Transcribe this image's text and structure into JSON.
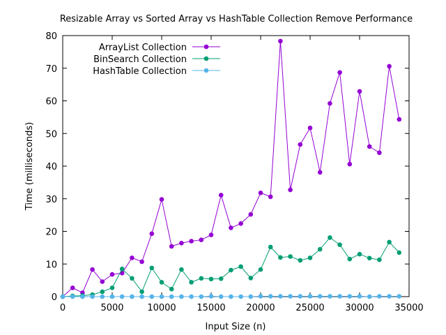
{
  "chart_data": {
    "type": "line",
    "title": "Resizable Array vs Sorted Array vs HashTable Collection Remove Performance",
    "xlabel": "Input Size (n)",
    "ylabel": "Time (milliseconds)",
    "xlim": [
      0,
      35000
    ],
    "ylim": [
      0,
      80
    ],
    "xticks": [
      0,
      5000,
      10000,
      15000,
      20000,
      25000,
      30000,
      35000
    ],
    "yticks": [
      0,
      10,
      20,
      30,
      40,
      50,
      60,
      70,
      80
    ],
    "grid": false,
    "legend_position": "top-left",
    "x": [
      0,
      1000,
      2000,
      3000,
      4000,
      5000,
      6000,
      7000,
      8000,
      9000,
      10000,
      11000,
      12000,
      13000,
      14000,
      15000,
      16000,
      17000,
      18000,
      19000,
      20000,
      21000,
      22000,
      23000,
      24000,
      25000,
      26000,
      27000,
      28000,
      29000,
      30000,
      31000,
      32000,
      33000,
      34000
    ],
    "series": [
      {
        "name": "ArrayList Collection",
        "color": "#9400d3",
        "values": [
          0,
          2.7,
          1.2,
          8.3,
          4.6,
          6.8,
          7.2,
          11.9,
          10.7,
          19.3,
          29.8,
          15.4,
          16.4,
          17.0,
          17.4,
          18.9,
          31.1,
          21.1,
          22.4,
          25.2,
          31.8,
          30.6,
          78.3,
          32.7,
          46.6,
          51.7,
          38.1,
          59.2,
          68.7,
          40.6,
          62.9,
          46.0,
          44.1,
          70.6,
          54.3
        ]
      },
      {
        "name": "BinSearch Collection",
        "color": "#009e73",
        "values": [
          0,
          0.2,
          0.3,
          0.6,
          1.5,
          2.7,
          8.5,
          5.6,
          1.5,
          8.8,
          4.4,
          2.3,
          8.3,
          4.4,
          5.6,
          5.4,
          5.5,
          8.1,
          9.2,
          5.7,
          8.3,
          15.2,
          12.0,
          12.3,
          11.1,
          11.9,
          14.5,
          18.1,
          15.9,
          11.5,
          13.0,
          11.8,
          11.3,
          16.7,
          13.5
        ]
      },
      {
        "name": "HashTable Collection",
        "color": "#56b4e9",
        "values": [
          0,
          0,
          0,
          0,
          0,
          0,
          0,
          0,
          0,
          0,
          0,
          0,
          0,
          0,
          0,
          0.1,
          0,
          0,
          0,
          0,
          0.1,
          0.1,
          0.1,
          0.1,
          0.1,
          0.1,
          0.1,
          0.1,
          0.1,
          0.1,
          0.1,
          0,
          0.1,
          0.1,
          0.1
        ]
      }
    ]
  }
}
